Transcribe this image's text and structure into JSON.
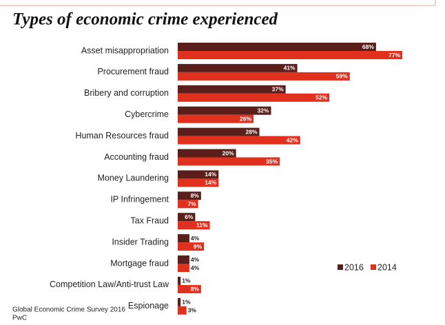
{
  "chart_data": {
    "type": "bar",
    "orientation": "horizontal",
    "title": "Types of economic crime experienced",
    "categories": [
      "Asset misappropriation",
      "Procurement fraud",
      "Bribery and corruption",
      "Cybercrime",
      "Human Resources fraud",
      "Accounting fraud",
      "Money Laundering",
      "IP Infringement",
      "Tax Fraud",
      "Insider Trading",
      "Mortgage fraud",
      "Competition Law/Anti-trust Law",
      "Espionage"
    ],
    "series": [
      {
        "name": "2016",
        "color": "#5b1f1b",
        "values": [
          68,
          41,
          37,
          32,
          28,
          20,
          14,
          8,
          6,
          4,
          4,
          1,
          1
        ],
        "value_labels": [
          "68%",
          "41%",
          "37%",
          "32%",
          "28%",
          "20%",
          "14%",
          "8%",
          "6%",
          "4%",
          "4%",
          "1%",
          "1%"
        ]
      },
      {
        "name": "2014",
        "color": "#e0301e",
        "values": [
          77,
          59,
          52,
          26,
          42,
          35,
          14,
          7,
          11,
          9,
          4,
          8,
          3
        ],
        "value_labels": [
          "77%",
          "59%",
          "52%",
          "26%",
          "42%",
          "35%",
          "14%",
          "7%",
          "11%",
          "9%",
          "4%",
          "8%",
          "3%"
        ]
      }
    ],
    "source": [
      "Global Economic Crime Survey 2016",
      "PwC"
    ],
    "legend": "bottom-right"
  }
}
